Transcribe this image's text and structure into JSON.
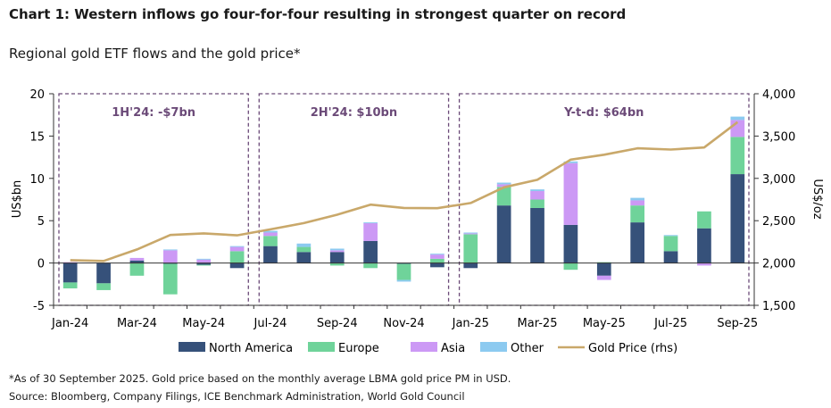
{
  "title": "Chart 1: Western inflows go four-for-four resulting in strongest quarter on record",
  "subtitle": "Regional gold ETF flows and the gold price*",
  "footnote": "*As of 30 September 2025. Gold price based on the monthly average LBMA gold price PM in USD.",
  "source": "Source: Bloomberg, Company Filings, ICE Benchmark Administration, World Gold Council",
  "colors": {
    "north_america": "#36517a",
    "europe": "#6fd39a",
    "asia": "#cc99f5",
    "other": "#8ccaf0",
    "gold_price": "#c9a86a",
    "period_box": "#6b4a78",
    "period_label": "#6b4a78"
  },
  "chart_data": {
    "type": "bar",
    "stacked": true,
    "categories": [
      "Jan-24",
      "Feb-24",
      "Mar-24",
      "Apr-24",
      "May-24",
      "Jun-24",
      "Jul-24",
      "Aug-24",
      "Sep-24",
      "Oct-24",
      "Nov-24",
      "Dec-24",
      "Jan-25",
      "Feb-25",
      "Mar-25",
      "Apr-25",
      "May-25",
      "Jun-25",
      "Jul-25",
      "Aug-25",
      "Sep-25"
    ],
    "x_tick_labels": [
      "Jan-24",
      "Mar-24",
      "May-24",
      "Jul-24",
      "Sep-24",
      "Nov-24",
      "Jan-25",
      "Mar-25",
      "May-25",
      "Jul-25",
      "Sep-25"
    ],
    "series": [
      {
        "name": "North America",
        "color_key": "north_america",
        "values": [
          -2.3,
          -2.4,
          0.3,
          -0.1,
          -0.2,
          -0.6,
          2.0,
          1.3,
          1.3,
          2.6,
          -0.1,
          -0.5,
          -0.6,
          6.8,
          6.5,
          4.5,
          -1.5,
          4.8,
          1.4,
          4.1,
          10.5
        ]
      },
      {
        "name": "Europe",
        "color_key": "europe",
        "values": [
          -0.7,
          -0.8,
          -1.5,
          -3.6,
          -0.1,
          1.4,
          1.2,
          0.6,
          -0.3,
          -0.6,
          -1.9,
          0.5,
          3.4,
          2.2,
          1.0,
          -0.8,
          0.1,
          2.0,
          1.8,
          2.0,
          4.4
        ]
      },
      {
        "name": "Asia",
        "color_key": "asia",
        "values": [
          0.1,
          0.0,
          0.3,
          1.5,
          0.4,
          0.5,
          0.4,
          0.0,
          0.2,
          2.1,
          0.0,
          0.5,
          0.1,
          0.3,
          1.0,
          7.3,
          -0.5,
          0.6,
          0.0,
          -0.3,
          2.0
        ]
      },
      {
        "name": "Other",
        "color_key": "other",
        "values": [
          0.0,
          0.0,
          0.0,
          0.1,
          0.1,
          0.1,
          0.2,
          0.4,
          0.2,
          0.1,
          -0.2,
          0.1,
          0.1,
          0.2,
          0.2,
          0.2,
          0.0,
          0.3,
          0.1,
          0.0,
          0.4
        ]
      }
    ],
    "line_series": {
      "name": "Gold Price (rhs)",
      "color_key": "gold_price",
      "axis": "right",
      "values": [
        2034,
        2024,
        2160,
        2331,
        2350,
        2327,
        2398,
        2472,
        2571,
        2690,
        2651,
        2648,
        2709,
        2895,
        2983,
        3222,
        3280,
        3355,
        3341,
        3365,
        3665
      ]
    },
    "y_left": {
      "label": "US$bn",
      "ylim": [
        -5,
        20
      ],
      "ticks": [
        "-5",
        "0",
        "5",
        "10",
        "15",
        "20"
      ]
    },
    "y_right": {
      "label": "US$/oz",
      "ylim": [
        1500,
        4000
      ],
      "ticks": [
        "1,500",
        "2,000",
        "2,500",
        "3,000",
        "3,500",
        "4,000"
      ]
    },
    "periods": [
      {
        "label": "1H'24: -$7bn",
        "from": "Jan-24",
        "to": "Jun-24"
      },
      {
        "label": "2H'24: $10bn",
        "from": "Jul-24",
        "to": "Dec-24"
      },
      {
        "label": "Y-t-d: $64bn",
        "from": "Jan-25",
        "to": "Sep-25"
      }
    ],
    "legend": {
      "position": "bottom",
      "entries": [
        "North America",
        "Europe",
        "Asia",
        "Other",
        "Gold Price (rhs)"
      ]
    },
    "grid": false
  }
}
